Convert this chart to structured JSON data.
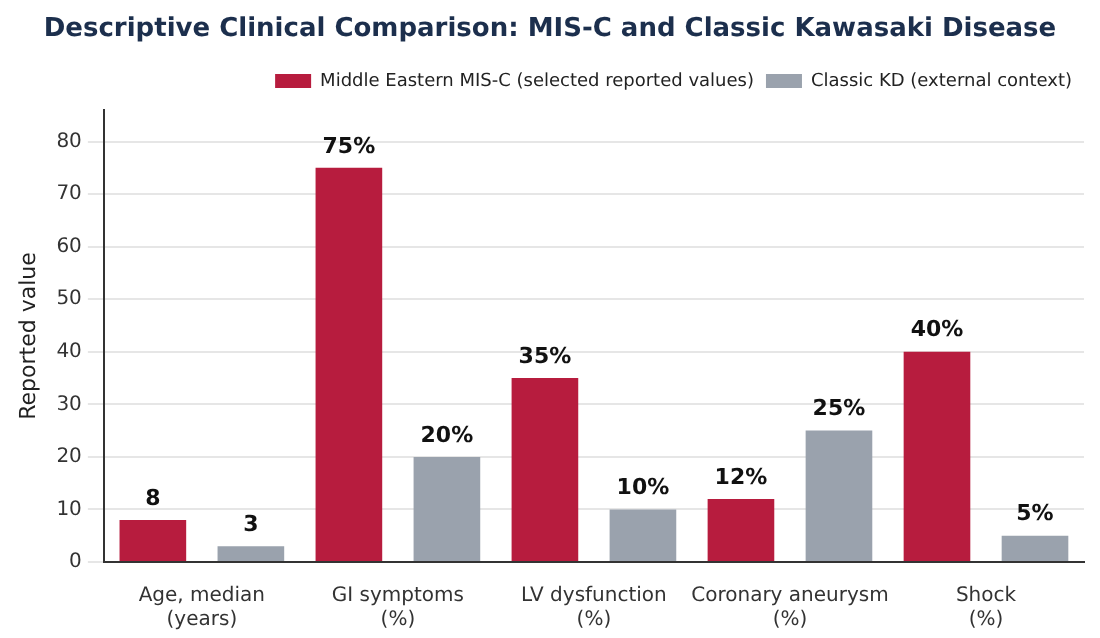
{
  "chart_data": {
    "type": "bar",
    "title": "Descriptive Clinical Comparison: MIS-C and Classic Kawasaki Disease",
    "ylabel": "Reported value",
    "categories": [
      "Age, median\n(years)",
      "GI symptoms\n(%)",
      "LV dysfunction\n(%)",
      "Coronary aneurysm\n(%)",
      "Shock\n(%)"
    ],
    "series": [
      {
        "name": "Middle Eastern MIS-C (selected reported values)",
        "color": "#b71c3e",
        "values": [
          8,
          75,
          35,
          12,
          40
        ],
        "value_labels": [
          "8",
          "75%",
          "35%",
          "12%",
          "40%"
        ]
      },
      {
        "name": "Classic KD (external context)",
        "color": "#9aa2ad",
        "values": [
          3,
          20,
          10,
          25,
          5
        ],
        "value_labels": [
          "3",
          "20%",
          "10%",
          "25%",
          "5%"
        ]
      }
    ],
    "ylim": [
      0,
      86
    ],
    "yticks": [
      0,
      10,
      20,
      30,
      40,
      50,
      60,
      70,
      80
    ],
    "grid": "y",
    "legend": "top right"
  }
}
